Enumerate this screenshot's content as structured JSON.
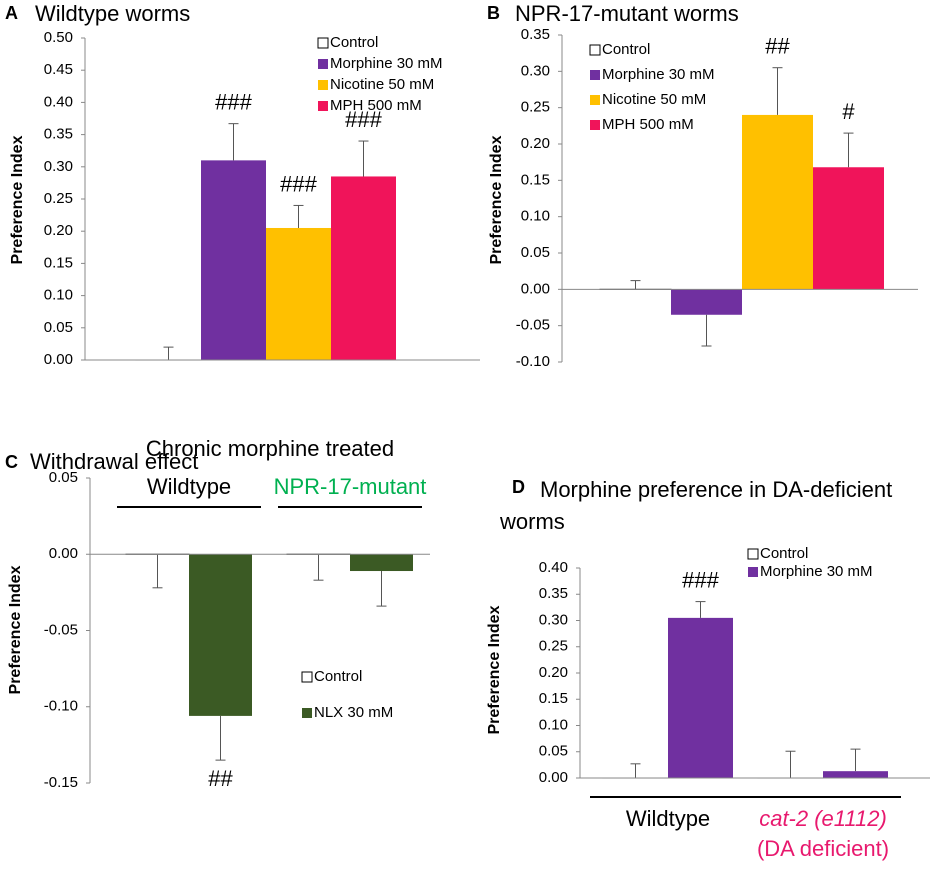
{
  "chart_data": [
    {
      "type": "bar",
      "panel": "A",
      "title": "Wildtype worms",
      "ylabel": "Preference Index",
      "categories": [
        null
      ],
      "series": [
        {
          "name": "Control",
          "color": "#ffffff",
          "values": [
            0.0
          ],
          "errors": [
            0.02
          ],
          "labels": [
            null
          ]
        },
        {
          "name": "Morphine 30 mM",
          "color": "#7030a0",
          "values": [
            0.31
          ],
          "errors": [
            0.057
          ],
          "labels": [
            "###"
          ]
        },
        {
          "name": "Nicotine 50 mM",
          "color": "#ffc000",
          "values": [
            0.205
          ],
          "errors": [
            0.035
          ],
          "labels": [
            "###"
          ]
        },
        {
          "name": "MPH 500 mM",
          "color": "#f0145a",
          "values": [
            0.285
          ],
          "errors": [
            0.055
          ],
          "labels": [
            "###"
          ]
        }
      ],
      "ylim": [
        0,
        0.5
      ],
      "yticks": [
        {
          "value": 0,
          "label": "0.00"
        },
        {
          "value": 0.05,
          "label": "0.05"
        },
        {
          "value": 0.1,
          "label": "0.10"
        },
        {
          "value": 0.15,
          "label": "0.15"
        },
        {
          "value": 0.2,
          "label": "0.20"
        },
        {
          "value": 0.25,
          "label": "0.25"
        },
        {
          "value": 0.3,
          "label": "0.30"
        },
        {
          "value": 0.35,
          "label": "0.35"
        },
        {
          "value": 0.4,
          "label": "0.40"
        },
        {
          "value": 0.45,
          "label": "0.45"
        },
        {
          "value": 0.5,
          "label": "0.50"
        }
      ]
    },
    {
      "type": "bar",
      "panel": "B",
      "title": "NPR-17-mutant worms",
      "ylabel": "Preference Index",
      "categories": [
        null
      ],
      "series": [
        {
          "name": "Control",
          "color": "#ffffff",
          "values": [
            0.0
          ],
          "errors": [
            0.012
          ],
          "labels": [
            null
          ]
        },
        {
          "name": "Morphine 30 mM",
          "color": "#7030a0",
          "values": [
            -0.035
          ],
          "errors": [
            0.043
          ],
          "labels": [
            null
          ]
        },
        {
          "name": "Nicotine 50 mM",
          "color": "#ffc000",
          "values": [
            0.24
          ],
          "errors": [
            0.065
          ],
          "labels": [
            "##"
          ]
        },
        {
          "name": "MPH 500 mM",
          "color": "#f0145a",
          "values": [
            0.168
          ],
          "errors": [
            0.047
          ],
          "labels": [
            "#"
          ]
        }
      ],
      "ylim": [
        -0.1,
        0.35
      ],
      "yticks": [
        {
          "value": -0.1,
          "label": "-0.10"
        },
        {
          "value": -0.05,
          "label": "-0.05"
        },
        {
          "value": 0,
          "label": "0.00"
        },
        {
          "value": 0.05,
          "label": "0.05"
        },
        {
          "value": 0.1,
          "label": "0.10"
        },
        {
          "value": 0.15,
          "label": "0.15"
        },
        {
          "value": 0.2,
          "label": "0.20"
        },
        {
          "value": 0.25,
          "label": "0.25"
        },
        {
          "value": 0.3,
          "label": "0.30"
        },
        {
          "value": 0.35,
          "label": "0.35"
        }
      ]
    },
    {
      "type": "bar",
      "panel": "C",
      "title": "Withdrawal effect",
      "subtitle": "Chronic morphine treated",
      "ylabel": "Preference Index",
      "categories": [
        "Wildtype",
        "NPR-17-mutant"
      ],
      "category_colors": [
        "#000000",
        "#00b050"
      ],
      "series": [
        {
          "name": "Control",
          "color": "#ffffff",
          "values": [
            0.0,
            0.0
          ],
          "errors": [
            0.022,
            0.017
          ],
          "labels": [
            null,
            null
          ]
        },
        {
          "name": "NLX 30 mM",
          "color": "#3b5a24",
          "values": [
            -0.106,
            -0.011
          ],
          "errors": [
            0.029,
            0.023
          ],
          "labels": [
            "##",
            null
          ]
        }
      ],
      "ylim": [
        -0.15,
        0.05
      ],
      "yticks": [
        {
          "value": -0.15,
          "label": "-0.15"
        },
        {
          "value": -0.1,
          "label": "-0.10"
        },
        {
          "value": -0.05,
          "label": "-0.05"
        },
        {
          "value": 0,
          "label": "0.00"
        },
        {
          "value": 0.05,
          "label": "0.05"
        }
      ]
    },
    {
      "type": "bar",
      "panel": "D",
      "title": "Morphine preference in DA-deficient worms",
      "ylabel": "Preference Index",
      "categories": [
        "Wildtype",
        [
          "cat-2 (e1112)",
          "(DA deficient)"
        ]
      ],
      "category_colors": [
        "#000000",
        "#e8196e"
      ],
      "series": [
        {
          "name": "Control",
          "color": "#ffffff",
          "values": [
            0.0,
            0.0
          ],
          "errors": [
            0.027,
            0.051
          ],
          "labels": [
            null,
            null
          ]
        },
        {
          "name": "Morphine 30 mM",
          "color": "#7030a0",
          "values": [
            0.305,
            0.013
          ],
          "errors": [
            0.031,
            0.042
          ],
          "labels": [
            "###",
            null
          ]
        }
      ],
      "ylim": [
        0,
        0.4
      ],
      "yticks": [
        {
          "value": 0,
          "label": "0.00"
        },
        {
          "value": 0.05,
          "label": "0.05"
        },
        {
          "value": 0.1,
          "label": "0.10"
        },
        {
          "value": 0.15,
          "label": "0.15"
        },
        {
          "value": 0.2,
          "label": "0.20"
        },
        {
          "value": 0.25,
          "label": "0.25"
        },
        {
          "value": 0.3,
          "label": "0.30"
        },
        {
          "value": 0.35,
          "label": "0.35"
        },
        {
          "value": 0.4,
          "label": "0.40"
        }
      ]
    }
  ]
}
